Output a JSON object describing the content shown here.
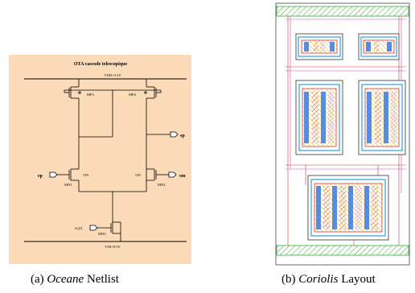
{
  "netlist": {
    "title": "OTA cascode telescopique",
    "vdd_label": "VDD=3.3V",
    "vss_label": "VSS=0.0V",
    "transistors": {
      "mp3": "MP3",
      "mp4": "MP4",
      "mn1": "MN1",
      "mn2": "MN2",
      "mn5": "MN5"
    },
    "vin_left": "VIN",
    "vin_right": "VIN",
    "pin_ep": "ep",
    "pin_em": "em",
    "pin_sp": "sp",
    "pin_vcp": "vcp1",
    "background_color": "#fcdcb8"
  },
  "captions": {
    "left_prefix": "(a)",
    "left_name": "Oceane",
    "left_suffix": "Netlist",
    "right_prefix": "(b)",
    "right_name": "Coriolis",
    "right_suffix": "Layout"
  }
}
